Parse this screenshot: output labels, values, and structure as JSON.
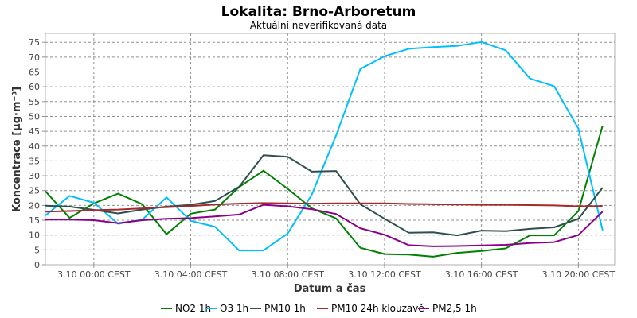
{
  "chart_data": {
    "type": "line",
    "title": "Lokalita: Brno-Arboretum",
    "subtitle": "Aktuální neverifikovaná data",
    "xlabel": "Datum a čas",
    "ylabel": "Koncentrace [µg·m⁻³]",
    "xlim": [
      -2,
      21.5
    ],
    "ylim": [
      0,
      78
    ],
    "grid": true,
    "legend_position": "bottom",
    "x_ticks": [
      {
        "value": 0,
        "label": "3.10 00:00 CEST"
      },
      {
        "value": 4,
        "label": "3.10 04:00 CEST"
      },
      {
        "value": 8,
        "label": "3.10 08:00 CEST"
      },
      {
        "value": 12,
        "label": "3.10 12:00 CEST"
      },
      {
        "value": 16,
        "label": "3.10 16:00 CEST"
      },
      {
        "value": 20,
        "label": "3.10 20:00 CEST"
      }
    ],
    "y_ticks": [
      0,
      5,
      10,
      15,
      20,
      25,
      30,
      35,
      40,
      45,
      50,
      55,
      60,
      65,
      70,
      75
    ],
    "x": [
      -2,
      -1,
      0,
      1,
      2,
      3,
      4,
      5,
      6,
      7,
      8,
      9,
      10,
      11,
      12,
      13,
      14,
      15,
      16,
      17,
      18,
      19,
      20,
      21
    ],
    "series": [
      {
        "name": "NO2 1h",
        "color": "#008000",
        "values": [
          24.8,
          15.8,
          20.7,
          24.0,
          20.4,
          10.3,
          17.2,
          18.6,
          26.2,
          31.7,
          25.6,
          19.0,
          15.6,
          5.7,
          3.6,
          3.4,
          2.7,
          4.0,
          4.6,
          5.5,
          9.9,
          9.9,
          18.1,
          46.9
        ]
      },
      {
        "name": "O3 1h",
        "color": "#00BFFF",
        "values": [
          16.6,
          23.2,
          20.9,
          13.8,
          15.2,
          22.7,
          14.8,
          12.8,
          4.8,
          4.8,
          10.5,
          23.7,
          43.6,
          66.0,
          70.3,
          72.8,
          73.4,
          73.8,
          75.1,
          72.3,
          62.8,
          60.2,
          45.9,
          11.6
        ]
      },
      {
        "name": "PM10 1h",
        "color": "#2F4F4F",
        "values": [
          19.9,
          19.6,
          18.5,
          17.3,
          18.6,
          19.6,
          20.2,
          21.5,
          26.3,
          36.9,
          36.4,
          31.4,
          31.6,
          20.4,
          15.5,
          10.8,
          10.9,
          9.9,
          11.5,
          11.3,
          12.1,
          12.6,
          15.5,
          26.0
        ]
      },
      {
        "name": "PM10 24h klouzavě",
        "color": "#A52A2A",
        "values": [
          17.9,
          18.1,
          18.4,
          18.6,
          19.0,
          19.4,
          19.8,
          20.3,
          20.6,
          20.8,
          20.7,
          20.6,
          20.7,
          20.7,
          20.7,
          20.5,
          20.4,
          20.3,
          20.2,
          20.2,
          20.1,
          20.0,
          19.7,
          19.8
        ]
      },
      {
        "name": "PM2,5 1h",
        "color": "#8B008B",
        "values": [
          15.2,
          15.2,
          15.0,
          14.0,
          15.0,
          15.5,
          15.7,
          16.3,
          16.9,
          20.2,
          19.7,
          18.7,
          17.1,
          12.3,
          10.1,
          6.6,
          6.2,
          6.3,
          6.5,
          6.7,
          7.3,
          7.6,
          10.0,
          17.9
        ]
      }
    ]
  }
}
